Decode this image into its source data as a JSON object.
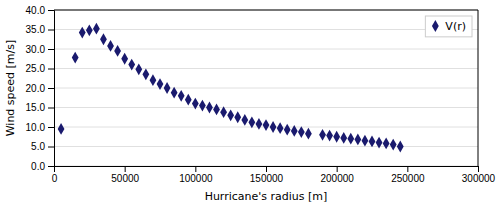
{
  "chart_data": {
    "type": "scatter",
    "xlabel": "Hurricane's radius [m]",
    "ylabel": "Wind speed [m/s]",
    "x": [
      5000,
      15000,
      20000,
      25000,
      30000,
      35000,
      40000,
      45000,
      50000,
      55000,
      60000,
      65000,
      70000,
      75000,
      80000,
      85000,
      90000,
      95000,
      100000,
      105000,
      110000,
      115000,
      120000,
      125000,
      130000,
      135000,
      140000,
      145000,
      150000,
      155000,
      160000,
      165000,
      170000,
      175000,
      180000,
      190000,
      195000,
      200000,
      205000,
      210000,
      215000,
      220000,
      225000,
      230000,
      235000,
      240000,
      245000
    ],
    "series": [
      {
        "name": "V(r)",
        "color": "#1a1a6e",
        "marker": "diamond",
        "values": [
          9.5,
          27.8,
          34.2,
          34.8,
          35.2,
          32.5,
          30.8,
          29.5,
          27.5,
          26.0,
          24.8,
          23.5,
          22.0,
          21.0,
          20.0,
          18.8,
          18.0,
          17.0,
          16.0,
          15.5,
          15.0,
          14.5,
          13.8,
          13.0,
          12.5,
          11.8,
          11.2,
          10.8,
          10.5,
          10.0,
          9.7,
          9.3,
          9.0,
          8.7,
          8.3,
          8.0,
          7.8,
          7.5,
          7.2,
          7.0,
          6.8,
          6.5,
          6.3,
          6.0,
          5.8,
          5.5,
          5.0
        ]
      }
    ],
    "xlim": [
      0,
      300000
    ],
    "ylim": [
      0.0,
      40.0
    ],
    "xticks": [
      0,
      50000,
      100000,
      150000,
      200000,
      250000,
      300000
    ],
    "yticks": [
      {
        "value": 0.0,
        "label": "0.0"
      },
      {
        "value": 5.0,
        "label": "5.0"
      },
      {
        "value": 10.0,
        "label": "10.0"
      },
      {
        "value": 15.0,
        "label": "15.0"
      },
      {
        "value": 20.0,
        "label": "20.0"
      },
      {
        "value": 25.0,
        "label": "25.0"
      },
      {
        "value": 30.0,
        "label": "30.0"
      },
      {
        "value": 35.0,
        "label": "35.0"
      },
      {
        "value": 40.0,
        "label": "40.0"
      }
    ],
    "grid": "y",
    "legend": "upper right"
  }
}
